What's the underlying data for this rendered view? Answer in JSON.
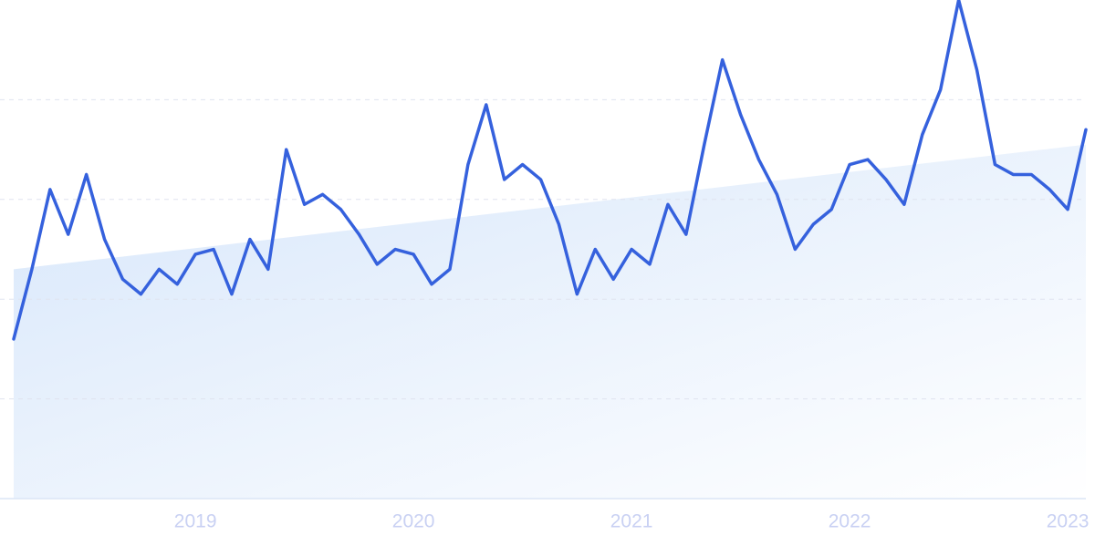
{
  "chart_data": {
    "type": "line",
    "categories": [
      null,
      null,
      null,
      null,
      null,
      null,
      null,
      null,
      null,
      null,
      "2019",
      null,
      null,
      null,
      null,
      null,
      null,
      null,
      null,
      null,
      null,
      null,
      "2020",
      null,
      null,
      null,
      null,
      null,
      null,
      null,
      null,
      null,
      null,
      null,
      "2021",
      null,
      null,
      null,
      null,
      null,
      null,
      null,
      null,
      null,
      null,
      null,
      "2022",
      null,
      null,
      null,
      null,
      null,
      null,
      null,
      null,
      null,
      null,
      null,
      "2023",
      null
    ],
    "series": [
      {
        "color": "#3561dd",
        "values": [
          32,
          46,
          62,
          53,
          65,
          52,
          44,
          41,
          46,
          43,
          49,
          50,
          41,
          52,
          46,
          70,
          59,
          61,
          58,
          53,
          47,
          50,
          49,
          43,
          46,
          67,
          79,
          64,
          67,
          64,
          55,
          41,
          50,
          44,
          50,
          47,
          59,
          53,
          71,
          88,
          77,
          68,
          61,
          50,
          55,
          58,
          67,
          68,
          64,
          59,
          73,
          82,
          100,
          86,
          67,
          65,
          65,
          62,
          58,
          74
        ]
      }
    ],
    "trend": [
      46,
      71
    ],
    "ylim": [
      0,
      100
    ],
    "ygrid": [
      20,
      40,
      60,
      80
    ],
    "grid": true
  }
}
